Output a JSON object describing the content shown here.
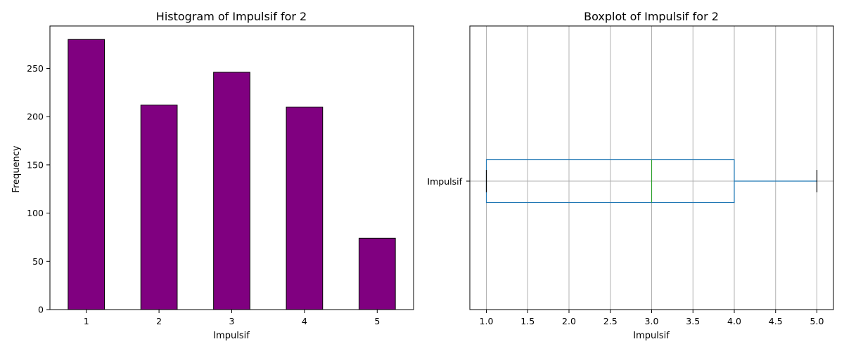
{
  "chart_data": [
    {
      "type": "bar",
      "title": "Histogram of Impulsif for 2",
      "xlabel": "Impulsif",
      "ylabel": "Frequency",
      "categories": [
        "1",
        "2",
        "3",
        "4",
        "5"
      ],
      "values": [
        280,
        212,
        246,
        210,
        74
      ],
      "ylim": [
        0,
        294
      ],
      "yticks": [
        0,
        50,
        100,
        150,
        200,
        250
      ],
      "bar_color": "#800080",
      "edge_color": "#000000",
      "grid": false
    },
    {
      "type": "boxplot",
      "title": "Boxplot of Impulsif for 2",
      "xlabel": "Impulsif",
      "category": "Impulsif",
      "orientation": "horizontal",
      "min": 1.0,
      "q1": 1.0,
      "median": 3.0,
      "q3": 4.0,
      "max": 5.0,
      "xlim": [
        0.8,
        5.2
      ],
      "xticks": [
        "1.0",
        "1.5",
        "2.0",
        "2.5",
        "3.0",
        "3.5",
        "4.0",
        "4.5",
        "5.0"
      ],
      "box_color": "#1f77b4",
      "median_color": "#2ca02c",
      "whisker_cap_color": "#000000",
      "grid": true
    }
  ]
}
